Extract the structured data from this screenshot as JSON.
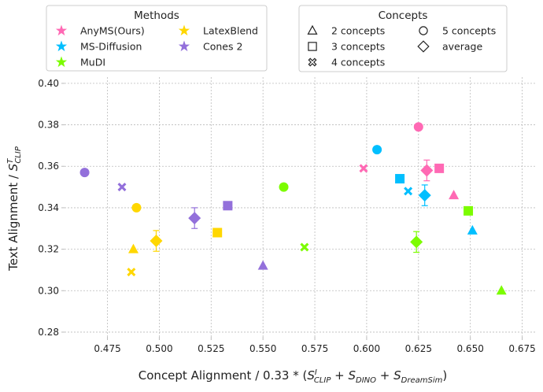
{
  "chart_data": {
    "type": "scatter",
    "xlabel": {
      "prefix": "Concept Alignment / 0.33 * (",
      "s": "S",
      "sup1": "I",
      "sub1": "CLIP",
      "plus": " + ",
      "sub2": "DINO",
      "sub3": "DreamSim",
      "suffix": ")"
    },
    "ylabel": {
      "prefix": "Text Alignment / ",
      "s": "S",
      "sup": "T",
      "sub": "CLIP"
    },
    "xlim": [
      0.4543,
      0.682
    ],
    "ylim": [
      0.2777,
      0.403
    ],
    "xticks": [
      "0.475",
      "0.500",
      "0.525",
      "0.550",
      "0.575",
      "0.600",
      "0.625",
      "0.650",
      "0.675"
    ],
    "yticks": [
      "0.28",
      "0.30",
      "0.32",
      "0.34",
      "0.36",
      "0.38",
      "0.40"
    ],
    "grid": true,
    "legends": [
      {
        "title": "Methods",
        "placement": "top-left",
        "entries": [
          {
            "label": "AnyMS(Ours)",
            "color": "#ff69b4",
            "marker": "star"
          },
          {
            "label": "MS-Diffusion",
            "color": "#00bfff",
            "marker": "star"
          },
          {
            "label": "MuDI",
            "color": "#7cfc00",
            "marker": "star"
          },
          {
            "label": "LatexBlend",
            "color": "#ffd700",
            "marker": "star"
          },
          {
            "label": "Cones 2",
            "color": "#9370db",
            "marker": "star"
          }
        ]
      },
      {
        "title": "Concepts",
        "placement": "top-right",
        "entries": [
          {
            "label": "2 concepts",
            "marker": "triangle"
          },
          {
            "label": "3 concepts",
            "marker": "square"
          },
          {
            "label": "4 concepts",
            "marker": "x"
          },
          {
            "label": "5 concepts",
            "marker": "circle"
          },
          {
            "label": "average",
            "marker": "diamond"
          }
        ]
      }
    ],
    "series": [
      {
        "name": "AnyMS(Ours)",
        "color": "#ff69b4",
        "points": [
          {
            "concepts": "2 concepts",
            "x": 0.642,
            "y": 0.346
          },
          {
            "concepts": "3 concepts",
            "x": 0.635,
            "y": 0.359
          },
          {
            "concepts": "4 concepts",
            "x": 0.5985,
            "y": 0.359
          },
          {
            "concepts": "5 concepts",
            "x": 0.625,
            "y": 0.379
          },
          {
            "concepts": "average",
            "x": 0.629,
            "y": 0.358,
            "err": 0.005
          }
        ]
      },
      {
        "name": "MS-Diffusion",
        "color": "#00bfff",
        "points": [
          {
            "concepts": "2 concepts",
            "x": 0.651,
            "y": 0.329
          },
          {
            "concepts": "3 concepts",
            "x": 0.616,
            "y": 0.354
          },
          {
            "concepts": "4 concepts",
            "x": 0.62,
            "y": 0.348
          },
          {
            "concepts": "5 concepts",
            "x": 0.605,
            "y": 0.368
          },
          {
            "concepts": "average",
            "x": 0.628,
            "y": 0.346,
            "err": 0.005
          }
        ]
      },
      {
        "name": "MuDI",
        "color": "#7cfc00",
        "points": [
          {
            "concepts": "2 concepts",
            "x": 0.665,
            "y": 0.3
          },
          {
            "concepts": "3 concepts",
            "x": 0.649,
            "y": 0.3385
          },
          {
            "concepts": "4 concepts",
            "x": 0.57,
            "y": 0.321
          },
          {
            "concepts": "5 concepts",
            "x": 0.56,
            "y": 0.35
          },
          {
            "concepts": "average",
            "x": 0.624,
            "y": 0.3235,
            "err": 0.005
          }
        ]
      },
      {
        "name": "LatexBlend",
        "color": "#ffd700",
        "points": [
          {
            "concepts": "2 concepts",
            "x": 0.4875,
            "y": 0.32
          },
          {
            "concepts": "3 concepts",
            "x": 0.528,
            "y": 0.328
          },
          {
            "concepts": "4 concepts",
            "x": 0.4865,
            "y": 0.309
          },
          {
            "concepts": "5 concepts",
            "x": 0.489,
            "y": 0.34
          },
          {
            "concepts": "average",
            "x": 0.4985,
            "y": 0.324,
            "err": 0.005
          }
        ]
      },
      {
        "name": "Cones 2",
        "color": "#9370db",
        "points": [
          {
            "concepts": "2 concepts",
            "x": 0.55,
            "y": 0.312
          },
          {
            "concepts": "3 concepts",
            "x": 0.533,
            "y": 0.341
          },
          {
            "concepts": "4 concepts",
            "x": 0.482,
            "y": 0.35
          },
          {
            "concepts": "5 concepts",
            "x": 0.464,
            "y": 0.357
          },
          {
            "concepts": "average",
            "x": 0.517,
            "y": 0.335,
            "err": 0.005
          }
        ]
      }
    ]
  }
}
